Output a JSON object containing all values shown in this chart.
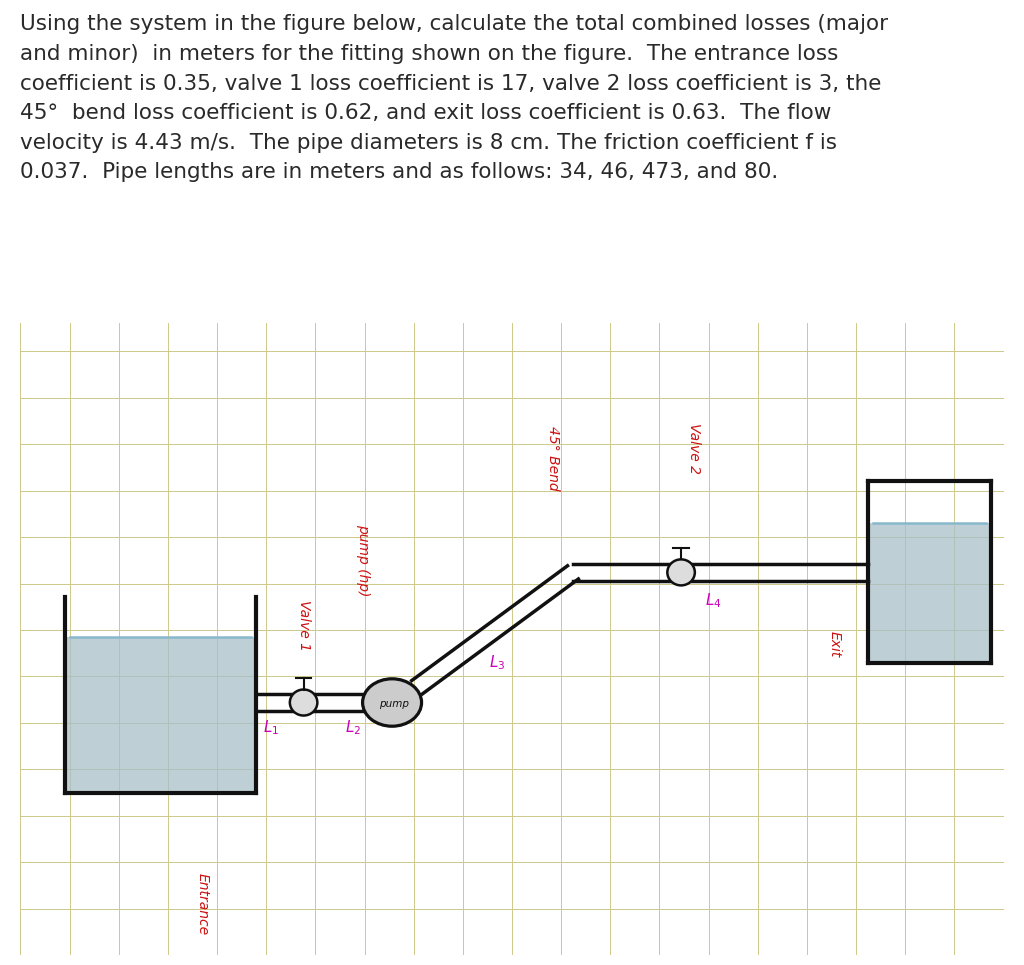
{
  "background_color": "#ffffff",
  "grid_color": "#cdc98a",
  "text_color": "#2a2a2a",
  "pipe_color": "#111111",
  "water_color": "#a8bfc8",
  "water_alpha": 0.75,
  "label_color_red": "#cc1111",
  "label_color_magenta": "#cc00bb",
  "title_text": "Using the system in the figure below, calculate the total combined losses (major\nand minor)  in meters for the fitting shown on the figure.  The entrance loss\ncoefficient is 0.35, valve 1 loss coefficient is 17, valve 2 loss coefficient is 3, the\n45°  bend loss coefficient is 0.62, and exit loss coefficient is 0.63.  The flow\nvelocity is 4.43 m/s.  The pipe diameters is 8 cm. The friction coefficient f is\n0.037.  Pipe lengths are in meters and as follows: 34, 46, 473, and 80.",
  "title_fontsize": 15.5,
  "diagram_bg": "#f5f0cc"
}
